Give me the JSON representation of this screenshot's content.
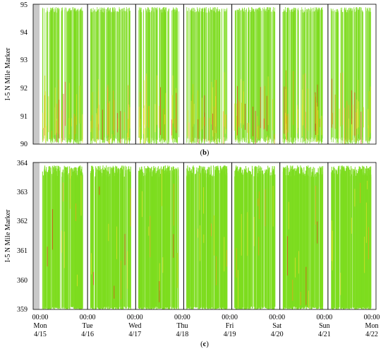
{
  "colors": {
    "green": "#7ddc1f",
    "yellow": "#e8e02a",
    "orange": "#f0a11c",
    "red": "#e83a1a",
    "gray_band": "#c9c9c9",
    "day_line": "#000000"
  },
  "chart_data": [
    {
      "type": "heatmap",
      "panel_label": "b",
      "ylabel": "I-5 N Mile Marker",
      "ylim": [
        90,
        95
      ],
      "yticks": [
        "90",
        "91",
        "92",
        "93",
        "94",
        "95"
      ],
      "ytick_values": [
        90,
        91,
        92,
        93,
        94,
        95
      ],
      "days": 7,
      "congestion": "moderate"
    },
    {
      "type": "heatmap",
      "panel_label": "c",
      "ylabel": "I-5 N Mile Marker",
      "ylim": [
        359,
        364
      ],
      "yticks": [
        "359",
        "360",
        "361",
        "362",
        "363",
        "364"
      ],
      "ytick_values": [
        359,
        360,
        361,
        362,
        363,
        364
      ],
      "days": 7,
      "congestion": "low",
      "xticks": [
        {
          "time": "00:00",
          "day": "Mon",
          "date": "4/15"
        },
        {
          "time": "00:00",
          "day": "Tue",
          "date": "4/16"
        },
        {
          "time": "00:00",
          "day": "Wed",
          "date": "4/17"
        },
        {
          "time": "00:00",
          "day": "Thu",
          "date": "4/18"
        },
        {
          "time": "00:00",
          "day": "Fri",
          "date": "4/19"
        },
        {
          "time": "00:00",
          "day": "Sat",
          "date": "4/20"
        },
        {
          "time": "00:00",
          "day": "Sun",
          "date": "4/21"
        },
        {
          "time": "00:00",
          "day": "Mon",
          "date": "4/22"
        }
      ]
    }
  ]
}
